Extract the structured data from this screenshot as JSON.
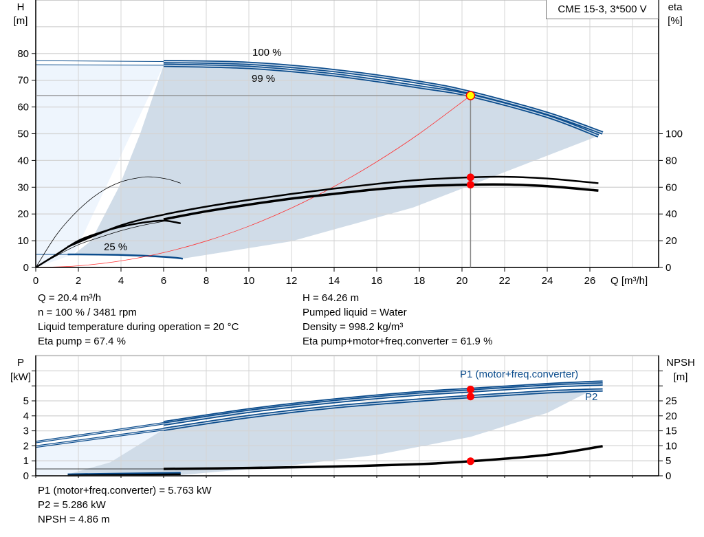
{
  "pump_title": "CME 15-3, 3*500 V",
  "colors": {
    "curve_blue": "#0b4c8c",
    "curve_light": "#c9d8e8",
    "area_dark": "#d0dce8",
    "area_light": "#eef5fd",
    "duty_point": "#ff0000",
    "duty_point_fill": "#ffff00",
    "system_curve": "#ff3030",
    "grid": "#d4d4d4"
  },
  "duty_info": {
    "left": [
      "Q = 20.4 m³/h",
      "n = 100 % / 3481 rpm",
      "Liquid temperature during operation = 20 °C",
      "Eta pump = 67.4 %"
    ],
    "right": [
      "H = 64.26 m",
      "Pumped liquid = Water",
      "Density = 998.2 kg/m³",
      "Eta pump+motor+freq.converter = 61.9 %"
    ]
  },
  "power_info": [
    "P1 (motor+freq.converter) = 5.763 kW",
    "P2 = 5.286 kW",
    "NPSH = 4.86 m"
  ],
  "chart_data": [
    {
      "type": "line",
      "xlabel": "Q [m³/h]",
      "ylabel": "H\n[m]",
      "y2label": "eta\n[%]",
      "xlim": [
        0,
        29.2
      ],
      "ylim": [
        0,
        100
      ],
      "y2lim": [
        0,
        200
      ],
      "xticks": [
        0,
        2,
        4,
        6,
        8,
        10,
        12,
        14,
        16,
        18,
        20,
        22,
        24,
        26
      ],
      "yticks": [
        0,
        10,
        20,
        30,
        40,
        50,
        60,
        70,
        80
      ],
      "y2ticks": [
        0,
        20,
        40,
        60,
        80,
        100
      ],
      "grid": true,
      "curve_labels": [
        "100 %",
        "99 %",
        "25 %"
      ],
      "areas": [
        {
          "name": "operating-range-low-flow",
          "fill": "area_light",
          "points": [
            [
              0,
              0
            ],
            [
              0,
              75.8
            ],
            [
              6,
              75.6
            ],
            [
              1.8,
              5
            ],
            [
              0,
              0
            ]
          ]
        },
        {
          "name": "operating-range",
          "fill": "area_dark",
          "points": [
            [
              1.8,
              5
            ],
            [
              2.6,
              10
            ],
            [
              3.9,
              30
            ],
            [
              4.9,
              50
            ],
            [
              6,
              75.6
            ],
            [
              10,
              74.8
            ],
            [
              14,
              72
            ],
            [
              18,
              67.5
            ],
            [
              20.4,
              64.26
            ],
            [
              24,
              56.5
            ],
            [
              26.4,
              49.2
            ],
            [
              17.7,
              22.4
            ],
            [
              12,
              9.8
            ],
            [
              6.9,
              3.3
            ],
            [
              1.8,
              5
            ]
          ]
        }
      ],
      "series": [
        {
          "name": "100 %",
          "axis": "H",
          "style": "double",
          "points": [
            [
              6,
              77
            ],
            [
              10,
              76.3
            ],
            [
              14,
              73.6
            ],
            [
              18,
              69.2
            ],
            [
              20.4,
              65.4
            ],
            [
              24,
              57.6
            ],
            [
              26.6,
              50.3
            ]
          ]
        },
        {
          "name": "99 %",
          "axis": "H",
          "style": "double",
          "points": [
            [
              6,
              75.6
            ],
            [
              10,
              74.8
            ],
            [
              14,
              72
            ],
            [
              18,
              67.5
            ],
            [
              20.4,
              64.26
            ],
            [
              24,
              56.5
            ],
            [
              26.4,
              49.2
            ]
          ]
        },
        {
          "axis": "H",
          "style": "thin-blue",
          "points": [
            [
              0,
              77.3
            ],
            [
              6,
              77
            ]
          ]
        },
        {
          "axis": "H",
          "style": "thin-blue",
          "points": [
            [
              0,
              75.8
            ],
            [
              6,
              75.6
            ]
          ]
        },
        {
          "name": "25 %",
          "axis": "H",
          "style": "blue",
          "points": [
            [
              1.5,
              4.9
            ],
            [
              4,
              4.7
            ],
            [
              6,
              4.0
            ],
            [
              6.9,
              3.3
            ]
          ]
        },
        {
          "axis": "H",
          "style": "thin-blue",
          "points": [
            [
              0,
              4.9
            ],
            [
              1.5,
              4.9
            ]
          ]
        },
        {
          "axis": "H",
          "style": "system",
          "points": [
            [
              0,
              0
            ],
            [
              2,
              0.62
            ],
            [
              4,
              2.47
            ],
            [
              6,
              5.56
            ],
            [
              8,
              9.88
            ],
            [
              10,
              15.44
            ],
            [
              12,
              22.23
            ],
            [
              14,
              30.26
            ],
            [
              16,
              39.53
            ],
            [
              18,
              50.03
            ],
            [
              20.4,
              64.26
            ]
          ]
        },
        {
          "axis": "eta",
          "style": "black",
          "points": [
            [
              1.5,
              15.5
            ],
            [
              4,
              31.5
            ],
            [
              6,
              39.5
            ],
            [
              8,
              45.5
            ],
            [
              10,
              50.5
            ],
            [
              12,
              55
            ],
            [
              14,
              59
            ],
            [
              16,
              62.5
            ],
            [
              18,
              65.5
            ],
            [
              20.4,
              67.4
            ],
            [
              22,
              67.8
            ],
            [
              24,
              66.5
            ],
            [
              26.4,
              63
            ]
          ]
        },
        {
          "axis": "eta",
          "style": "black-thick",
          "points": [
            [
              6,
              36
            ],
            [
              8,
              42
            ],
            [
              10,
              47
            ],
            [
              12,
              51.5
            ],
            [
              14,
              55
            ],
            [
              16,
              58.5
            ],
            [
              18,
              60.8
            ],
            [
              20.4,
              61.9
            ],
            [
              22,
              62
            ],
            [
              24,
              60.8
            ],
            [
              26.4,
              57.5
            ]
          ]
        },
        {
          "axis": "eta",
          "style": "thin-black",
          "points": [
            [
              0,
              0
            ],
            [
              1,
              25
            ],
            [
              2,
              43
            ],
            [
              3,
              56
            ],
            [
              4,
              64
            ],
            [
              5,
              67.5
            ],
            [
              5.5,
              67.6
            ],
            [
              6.2,
              66
            ],
            [
              6.8,
              63
            ]
          ]
        },
        {
          "axis": "eta",
          "style": "black",
          "points": [
            [
              0,
              0
            ],
            [
              1,
              10
            ],
            [
              2,
              20
            ],
            [
              3,
              26
            ],
            [
              4,
              30.5
            ],
            [
              5,
              33.5
            ],
            [
              6,
              35
            ],
            [
              6.8,
              33
            ]
          ]
        },
        {
          "axis": "eta",
          "style": "thin-black",
          "points": [
            [
              0,
              0
            ],
            [
              1,
              9
            ],
            [
              2,
              17
            ],
            [
              3,
              22.5
            ],
            [
              4,
              27.5
            ],
            [
              5,
              31.5
            ],
            [
              6,
              34.5
            ]
          ]
        }
      ],
      "duty_point": {
        "Q": 20.4,
        "H": 64.26,
        "eta_pump": 67.4,
        "eta_total": 61.9
      }
    },
    {
      "type": "line",
      "ylabel": "P\n[kW]",
      "y2label": "NPSH\n[m]",
      "xlim": [
        0,
        29.2
      ],
      "ylim": [
        0,
        8
      ],
      "y2lim": [
        0,
        40
      ],
      "yticks": [
        0,
        1,
        2,
        3,
        4,
        5
      ],
      "y2ticks": [
        0,
        5,
        10,
        15,
        20,
        25
      ],
      "grid": true,
      "curve_labels": [
        "P1 (motor+freq.converter)",
        "P2"
      ],
      "areas": [
        {
          "name": "power-range-low-flow",
          "fill": "area_light",
          "points": [
            [
              0,
              0
            ],
            [
              0,
              1.95
            ],
            [
              6,
              3.1
            ],
            [
              3.5,
              0.9
            ],
            [
              1.5,
              0.1
            ],
            [
              0,
              0
            ]
          ]
        },
        {
          "name": "power-range",
          "fill": "area_dark",
          "points": [
            [
              1.5,
              0.1
            ],
            [
              3.5,
              0.9
            ],
            [
              6,
              3.1
            ],
            [
              10,
              3.95
            ],
            [
              14,
              4.6
            ],
            [
              18,
              5.1
            ],
            [
              20.4,
              5.286
            ],
            [
              24,
              5.6
            ],
            [
              26,
              5.65
            ],
            [
              24,
              4.2
            ],
            [
              20.4,
              2.6
            ],
            [
              16,
              1.4
            ],
            [
              12,
              0.7
            ],
            [
              6.8,
              0.05
            ],
            [
              1.5,
              0.1
            ]
          ]
        }
      ],
      "series": [
        {
          "name": "P1 (motor+freq.converter)",
          "axis": "P",
          "style": "double",
          "points": [
            [
              6,
              3.55
            ],
            [
              10,
              4.4
            ],
            [
              14,
              5.05
            ],
            [
              18,
              5.55
            ],
            [
              20.4,
              5.763
            ],
            [
              24,
              6.08
            ],
            [
              26.6,
              6.25
            ]
          ]
        },
        {
          "axis": "P",
          "style": "double",
          "points": [
            [
              6,
              3.45
            ],
            [
              10,
              4.3
            ],
            [
              14,
              4.95
            ],
            [
              18,
              5.45
            ],
            [
              20.4,
              5.66
            ],
            [
              24,
              5.98
            ],
            [
              26.6,
              6.13
            ]
          ]
        },
        {
          "name": "P2",
          "axis": "P",
          "style": "double",
          "points": [
            [
              6,
              3.1
            ],
            [
              10,
              3.95
            ],
            [
              14,
              4.6
            ],
            [
              18,
              5.05
            ],
            [
              20.4,
              5.286
            ],
            [
              24,
              5.6
            ],
            [
              26.6,
              5.73
            ]
          ]
        },
        {
          "axis": "P",
          "style": "double-thin",
          "points": [
            [
              0,
              2.25
            ],
            [
              6,
              3.5
            ]
          ]
        },
        {
          "axis": "P",
          "style": "double-thin",
          "points": [
            [
              0,
              1.95
            ],
            [
              6,
              3.1
            ]
          ]
        },
        {
          "axis": "P",
          "style": "blue",
          "points": [
            [
              1.5,
              0.1
            ],
            [
              6.8,
              0.2
            ]
          ]
        },
        {
          "axis": "P",
          "style": "black",
          "points": [
            [
              1.5,
              0.02
            ],
            [
              6.8,
              0.1
            ]
          ]
        },
        {
          "axis": "NPSH",
          "style": "thin-black",
          "points": [
            [
              0,
              2.3
            ],
            [
              6,
              2.3
            ]
          ]
        },
        {
          "name": "NPSH",
          "axis": "NPSH",
          "style": "black-thick",
          "points": [
            [
              6,
              2.3
            ],
            [
              10,
              2.6
            ],
            [
              14,
              3.1
            ],
            [
              18,
              3.9
            ],
            [
              20.4,
              4.86
            ],
            [
              24,
              7.0
            ],
            [
              26.6,
              9.9
            ]
          ]
        }
      ],
      "duty_point": {
        "P1": 5.763,
        "P2": 5.286,
        "NPSH": 4.86
      }
    }
  ]
}
